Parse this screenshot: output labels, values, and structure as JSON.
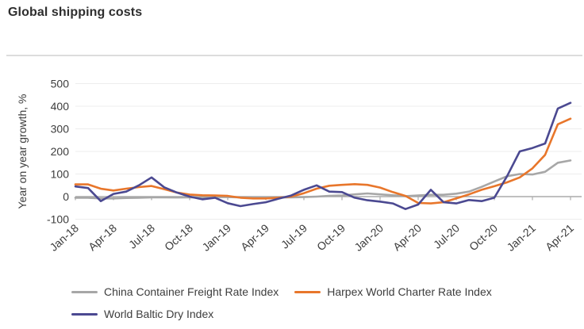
{
  "header": {
    "title": "Global shipping costs"
  },
  "colors": {
    "gray_series": "#a7a7a7",
    "orange_series": "#e8762b",
    "purple_series": "#4b4991",
    "grid": "#ededed",
    "axis": "#ababab",
    "tick_text": "#3d3d3d",
    "title_text": "#2e2e2e",
    "divider": "#dcdcdc"
  },
  "chart_data": {
    "type": "line",
    "title": "Global shipping costs",
    "xlabel": "",
    "ylabel": "Year on year growth, %",
    "ylim": [
      -100,
      500
    ],
    "ytick_step": 100,
    "ytick_labels": [
      "-100",
      "0",
      "100",
      "200",
      "300",
      "400",
      "500"
    ],
    "grid": "horizontal-faint",
    "legend_position": "bottom",
    "x_tick_interval": 3,
    "x": [
      "Jan-18",
      "Feb-18",
      "Mar-18",
      "Apr-18",
      "May-18",
      "Jun-18",
      "Jul-18",
      "Aug-18",
      "Sep-18",
      "Oct-18",
      "Nov-18",
      "Dec-18",
      "Jan-19",
      "Feb-19",
      "Mar-19",
      "Apr-19",
      "May-19",
      "Jun-19",
      "Jul-19",
      "Aug-19",
      "Sep-19",
      "Oct-19",
      "Nov-19",
      "Dec-19",
      "Jan-20",
      "Feb-20",
      "Mar-20",
      "Apr-20",
      "May-20",
      "Jun-20",
      "Jul-20",
      "Aug-20",
      "Sep-20",
      "Oct-20",
      "Nov-20",
      "Dec-20",
      "Jan-21",
      "Feb-21",
      "Mar-21",
      "Apr-21"
    ],
    "x_tick_labels": [
      "Jan-18",
      "Apr-18",
      "Jul-18",
      "Oct-18",
      "Jan-19",
      "Apr-19",
      "Jul-19",
      "Oct-19",
      "Jan-20",
      "Apr-20",
      "Jul-20",
      "Oct-20",
      "Jan-21",
      "Apr-21"
    ],
    "series": [
      {
        "id": "china-container-freight",
        "name": "China Container Freight Rate Index",
        "color": "#a7a7a7",
        "values": [
          -5,
          -5,
          -8,
          -8,
          -6,
          -5,
          -3,
          -3,
          -4,
          -3,
          -3,
          -2,
          -2,
          -3,
          -5,
          -5,
          -4,
          -3,
          -2,
          0,
          3,
          5,
          10,
          14,
          10,
          6,
          2,
          5,
          8,
          8,
          13,
          22,
          43,
          67,
          90,
          100,
          98,
          110,
          150,
          160
        ]
      },
      {
        "id": "harpex-world-charter",
        "name": "Harpex World Charter Rate Index",
        "color": "#e8762b",
        "values": [
          54,
          54,
          35,
          27,
          35,
          42,
          47,
          33,
          18,
          9,
          6,
          5,
          3,
          -5,
          -8,
          -8,
          -5,
          0,
          15,
          35,
          48,
          52,
          55,
          52,
          40,
          20,
          3,
          -28,
          -30,
          -25,
          -8,
          10,
          30,
          46,
          63,
          85,
          125,
          185,
          320,
          345
        ]
      },
      {
        "id": "world-baltic-dry",
        "name": "World Baltic Dry Index",
        "color": "#4b4991",
        "values": [
          45,
          38,
          -20,
          12,
          22,
          50,
          85,
          41,
          18,
          0,
          -12,
          -5,
          -29,
          -42,
          -33,
          -25,
          -9,
          5,
          30,
          50,
          22,
          20,
          -5,
          -16,
          -22,
          -30,
          -55,
          -35,
          30,
          -25,
          -30,
          -15,
          -20,
          -5,
          90,
          200,
          215,
          235,
          390,
          415
        ]
      }
    ]
  }
}
